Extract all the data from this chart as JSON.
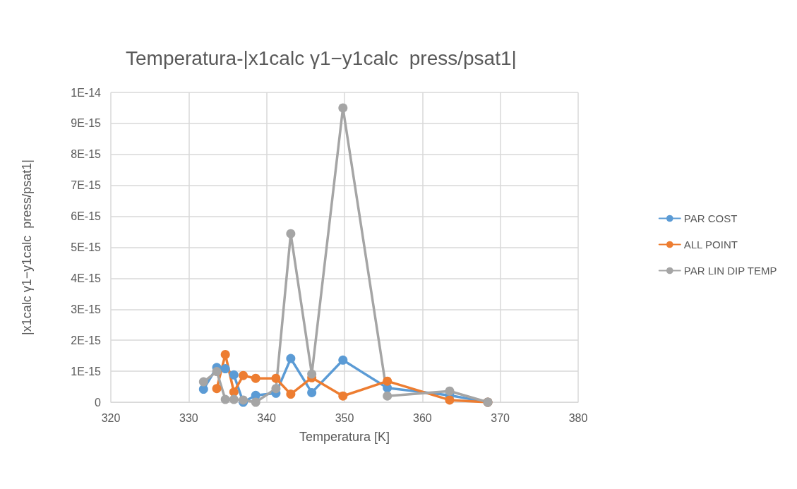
{
  "chart_data": {
    "type": "line",
    "title": "Temperatura-|x1calc γ1−y1calc  press/psat1|",
    "xlabel": "Temperatura [K]",
    "ylabel": "|x1calc γ1−y1calc  press/psat1|",
    "x": [
      331.9,
      333.6,
      334.7,
      335.8,
      337.0,
      338.6,
      341.2,
      343.1,
      345.8,
      349.8,
      355.5,
      363.5,
      368.4
    ],
    "series": [
      {
        "name": "PAR COST",
        "color": "#5b9bd5",
        "values": [
          4.2e-16,
          1.12e-15,
          1.08e-15,
          8.8e-16,
          0,
          2.2e-16,
          2.9e-16,
          1.41e-15,
          3.1e-16,
          1.36e-15,
          4.6e-16,
          2.2e-16,
          0
        ]
      },
      {
        "name": "ALL POINT",
        "color": "#ed7d31",
        "values": [
          null,
          4.4e-16,
          1.54e-15,
          3.3e-16,
          8.6e-16,
          7.7e-16,
          7.7e-16,
          2.6e-16,
          7.9e-16,
          2e-16,
          6.8e-16,
          7e-17,
          0
        ]
      },
      {
        "name": "PAR LIN DIP TEMP",
        "color": "#a5a5a5",
        "values": [
          6.6e-16,
          9.9e-16,
          9e-17,
          9e-17,
          7e-17,
          0,
          4.4e-16,
          5.44e-15,
          9.1e-16,
          9.5e-15,
          2e-16,
          3.6e-16,
          0
        ]
      }
    ],
    "xlim": [
      320,
      380
    ],
    "xticks": [
      320,
      330,
      340,
      350,
      360,
      370,
      380
    ],
    "ylim": [
      0,
      1e-14
    ],
    "yticks": [
      {
        "value": 0,
        "label": "0"
      },
      {
        "value": 1e-15,
        "label": "1E-15"
      },
      {
        "value": 2e-15,
        "label": "2E-15"
      },
      {
        "value": 3e-15,
        "label": "3E-15"
      },
      {
        "value": 4e-15,
        "label": "4E-15"
      },
      {
        "value": 5e-15,
        "label": "5E-15"
      },
      {
        "value": 6e-15,
        "label": "6E-15"
      },
      {
        "value": 7e-15,
        "label": "7E-15"
      },
      {
        "value": 8e-15,
        "label": "8E-15"
      },
      {
        "value": 9e-15,
        "label": "9E-15"
      },
      {
        "value": 1e-14,
        "label": "1E-14"
      }
    ],
    "grid": true,
    "legend": "right",
    "marker": "circle",
    "line_style": "solid"
  }
}
